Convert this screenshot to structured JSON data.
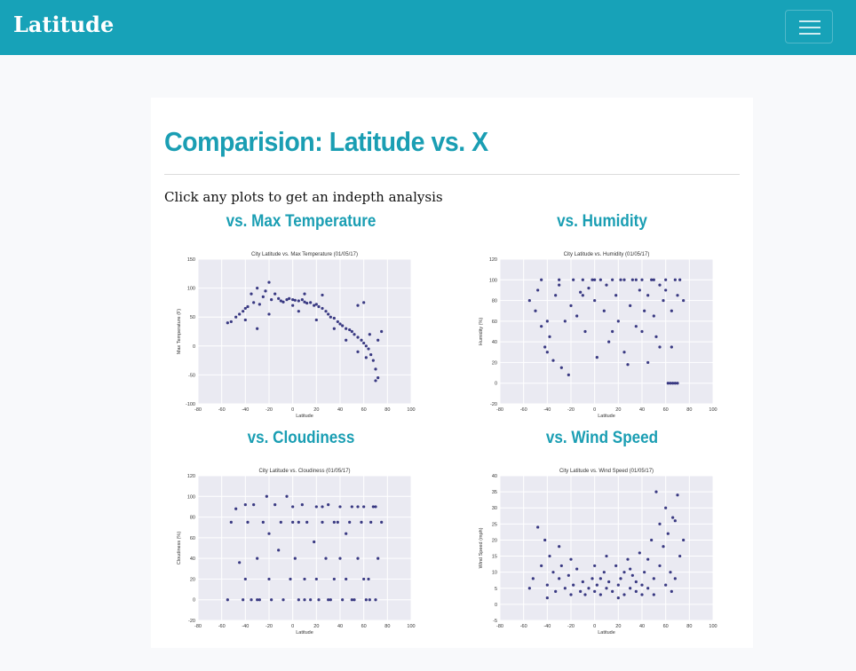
{
  "nav": {
    "brand": "Latitude"
  },
  "page": {
    "title": "Comparision: Latitude vs. X",
    "intro": "Click any plots to get an indepth analysis"
  },
  "colors": {
    "accent": "#17a2b8",
    "point": "#1a1a6e",
    "plot_bg": "#eaeaf2"
  },
  "icons": {
    "menu": "hamburger-menu-icon"
  },
  "plots": [
    {
      "heading": "vs. Max Temperature"
    },
    {
      "heading": "vs. Humidity"
    },
    {
      "heading": "vs. Cloudiness"
    },
    {
      "heading": "vs. Wind Speed"
    }
  ],
  "chart_data": [
    {
      "type": "scatter",
      "title": "City Latitude vs. Max Temperature (01/05/17)",
      "xlabel": "Latitude",
      "ylabel": "Max Temperature (F)",
      "xlim": [
        -80,
        100
      ],
      "ylim": [
        -100,
        150
      ],
      "xticks": [
        -80,
        -60,
        -40,
        -20,
        0,
        20,
        40,
        60,
        80,
        100
      ],
      "yticks": [
        -100,
        -50,
        0,
        50,
        100,
        150
      ],
      "grid": true,
      "points": [
        [
          -55,
          40
        ],
        [
          -52,
          42
        ],
        [
          -48,
          50
        ],
        [
          -45,
          55
        ],
        [
          -42,
          60
        ],
        [
          -40,
          65
        ],
        [
          -38,
          68
        ],
        [
          -35,
          90
        ],
        [
          -33,
          75
        ],
        [
          -30,
          100
        ],
        [
          -28,
          72
        ],
        [
          -25,
          85
        ],
        [
          -23,
          95
        ],
        [
          -20,
          110
        ],
        [
          -18,
          80
        ],
        [
          -15,
          90
        ],
        [
          -12,
          82
        ],
        [
          -10,
          78
        ],
        [
          -8,
          76
        ],
        [
          -5,
          80
        ],
        [
          -3,
          82
        ],
        [
          0,
          80
        ],
        [
          2,
          79
        ],
        [
          5,
          78
        ],
        [
          8,
          80
        ],
        [
          10,
          76
        ],
        [
          12,
          74
        ],
        [
          15,
          75
        ],
        [
          18,
          70
        ],
        [
          20,
          72
        ],
        [
          22,
          68
        ],
        [
          25,
          65
        ],
        [
          28,
          60
        ],
        [
          30,
          55
        ],
        [
          32,
          50
        ],
        [
          35,
          48
        ],
        [
          38,
          42
        ],
        [
          40,
          38
        ],
        [
          42,
          35
        ],
        [
          45,
          30
        ],
        [
          48,
          28
        ],
        [
          50,
          25
        ],
        [
          52,
          20
        ],
        [
          55,
          15
        ],
        [
          58,
          10
        ],
        [
          60,
          5
        ],
        [
          62,
          0
        ],
        [
          64,
          -5
        ],
        [
          66,
          -15
        ],
        [
          68,
          -25
        ],
        [
          70,
          -40
        ],
        [
          72,
          -55
        ],
        [
          60,
          75
        ],
        [
          55,
          70
        ],
        [
          65,
          20
        ],
        [
          72,
          10
        ],
        [
          75,
          25
        ],
        [
          -40,
          45
        ],
        [
          -20,
          55
        ],
        [
          5,
          60
        ],
        [
          20,
          45
        ],
        [
          35,
          30
        ],
        [
          45,
          10
        ],
        [
          55,
          -10
        ],
        [
          62,
          -20
        ],
        [
          70,
          -60
        ],
        [
          10,
          90
        ],
        [
          25,
          88
        ],
        [
          0,
          70
        ],
        [
          -30,
          30
        ]
      ]
    },
    {
      "type": "scatter",
      "title": "City Latitude vs. Humidity (01/05/17)",
      "xlabel": "Latitude",
      "ylabel": "Humidity (%)",
      "xlim": [
        -80,
        100
      ],
      "ylim": [
        -20,
        120
      ],
      "xticks": [
        -80,
        -60,
        -40,
        -20,
        0,
        20,
        40,
        60,
        80,
        100
      ],
      "yticks": [
        -20,
        0,
        20,
        40,
        60,
        80,
        100,
        120
      ],
      "grid": true,
      "points": [
        [
          -55,
          80
        ],
        [
          -50,
          70
        ],
        [
          -48,
          90
        ],
        [
          -45,
          55
        ],
        [
          -42,
          35
        ],
        [
          -40,
          30
        ],
        [
          -38,
          45
        ],
        [
          -35,
          22
        ],
        [
          -33,
          85
        ],
        [
          -30,
          95
        ],
        [
          -28,
          15
        ],
        [
          -25,
          60
        ],
        [
          -22,
          8
        ],
        [
          -20,
          75
        ],
        [
          -18,
          100
        ],
        [
          -15,
          65
        ],
        [
          -12,
          88
        ],
        [
          -10,
          100
        ],
        [
          -8,
          50
        ],
        [
          -5,
          92
        ],
        [
          -2,
          100
        ],
        [
          0,
          80
        ],
        [
          2,
          25
        ],
        [
          5,
          100
        ],
        [
          8,
          70
        ],
        [
          10,
          95
        ],
        [
          12,
          40
        ],
        [
          15,
          100
        ],
        [
          18,
          85
        ],
        [
          20,
          60
        ],
        [
          22,
          100
        ],
        [
          25,
          30
        ],
        [
          28,
          18
        ],
        [
          30,
          75
        ],
        [
          32,
          100
        ],
        [
          35,
          55
        ],
        [
          38,
          90
        ],
        [
          40,
          100
        ],
        [
          42,
          70
        ],
        [
          45,
          85
        ],
        [
          48,
          100
        ],
        [
          50,
          65
        ],
        [
          52,
          45
        ],
        [
          55,
          95
        ],
        [
          58,
          80
        ],
        [
          60,
          100
        ],
        [
          62,
          0
        ],
        [
          64,
          0
        ],
        [
          66,
          0
        ],
        [
          68,
          0
        ],
        [
          70,
          0
        ],
        [
          72,
          100
        ],
        [
          75,
          80
        ],
        [
          65,
          70
        ],
        [
          70,
          85
        ],
        [
          55,
          35
        ],
        [
          45,
          20
        ],
        [
          35,
          100
        ],
        [
          25,
          100
        ],
        [
          15,
          50
        ],
        [
          0,
          100
        ],
        [
          -10,
          85
        ],
        [
          -30,
          100
        ],
        [
          -40,
          60
        ],
        [
          -45,
          100
        ],
        [
          65,
          35
        ],
        [
          68,
          100
        ],
        [
          60,
          90
        ],
        [
          50,
          100
        ],
        [
          40,
          50
        ]
      ]
    },
    {
      "type": "scatter",
      "title": "City Latitude vs. Cloudiness (01/05/17)",
      "xlabel": "Latitude",
      "ylabel": "Cloudiness (%)",
      "xlim": [
        -80,
        100
      ],
      "ylim": [
        -20,
        120
      ],
      "xticks": [
        -80,
        -60,
        -40,
        -20,
        0,
        20,
        40,
        60,
        80,
        100
      ],
      "yticks": [
        -20,
        0,
        20,
        40,
        60,
        80,
        100,
        120
      ],
      "grid": true,
      "points": [
        [
          -55,
          0
        ],
        [
          -52,
          75
        ],
        [
          -48,
          88
        ],
        [
          -45,
          36
        ],
        [
          -42,
          0
        ],
        [
          -40,
          20
        ],
        [
          -38,
          75
        ],
        [
          -35,
          0
        ],
        [
          -33,
          92
        ],
        [
          -30,
          40
        ],
        [
          -28,
          0
        ],
        [
          -25,
          75
        ],
        [
          -22,
          100
        ],
        [
          -20,
          20
        ],
        [
          -18,
          0
        ],
        [
          -15,
          92
        ],
        [
          -12,
          48
        ],
        [
          -10,
          75
        ],
        [
          -8,
          0
        ],
        [
          -5,
          100
        ],
        [
          -2,
          20
        ],
        [
          0,
          75
        ],
        [
          2,
          40
        ],
        [
          5,
          0
        ],
        [
          8,
          92
        ],
        [
          10,
          20
        ],
        [
          12,
          75
        ],
        [
          15,
          0
        ],
        [
          18,
          56
        ],
        [
          20,
          90
        ],
        [
          22,
          0
        ],
        [
          25,
          75
        ],
        [
          28,
          40
        ],
        [
          30,
          92
        ],
        [
          32,
          0
        ],
        [
          35,
          20
        ],
        [
          38,
          75
        ],
        [
          40,
          90
        ],
        [
          42,
          0
        ],
        [
          45,
          64
        ],
        [
          48,
          75
        ],
        [
          50,
          90
        ],
        [
          52,
          0
        ],
        [
          55,
          40
        ],
        [
          58,
          75
        ],
        [
          60,
          90
        ],
        [
          62,
          0
        ],
        [
          64,
          20
        ],
        [
          66,
          75
        ],
        [
          68,
          90
        ],
        [
          70,
          0
        ],
        [
          72,
          40
        ],
        [
          75,
          75
        ],
        [
          -40,
          92
        ],
        [
          -20,
          64
        ],
        [
          0,
          90
        ],
        [
          20,
          20
        ],
        [
          40,
          40
        ],
        [
          60,
          20
        ],
        [
          70,
          90
        ],
        [
          10,
          0
        ],
        [
          30,
          0
        ],
        [
          50,
          0
        ],
        [
          65,
          0
        ],
        [
          -30,
          0
        ],
        [
          5,
          75
        ],
        [
          25,
          90
        ],
        [
          45,
          20
        ],
        [
          55,
          90
        ],
        [
          35,
          75
        ]
      ]
    },
    {
      "type": "scatter",
      "title": "City Latitude vs. Wind Speed (01/05/17)",
      "xlabel": "Latitude",
      "ylabel": "Wind Speed (mph)",
      "xlim": [
        -80,
        100
      ],
      "ylim": [
        -5,
        40
      ],
      "xticks": [
        -80,
        -60,
        -40,
        -20,
        0,
        20,
        40,
        60,
        80,
        100
      ],
      "yticks": [
        -5,
        0,
        5,
        10,
        15,
        20,
        25,
        30,
        35,
        40
      ],
      "grid": true,
      "points": [
        [
          -55,
          5
        ],
        [
          -52,
          8
        ],
        [
          -48,
          24
        ],
        [
          -45,
          12
        ],
        [
          -42,
          20
        ],
        [
          -40,
          6
        ],
        [
          -38,
          15
        ],
        [
          -35,
          10
        ],
        [
          -33,
          4
        ],
        [
          -30,
          8
        ],
        [
          -28,
          12
        ],
        [
          -25,
          5
        ],
        [
          -22,
          9
        ],
        [
          -20,
          3
        ],
        [
          -18,
          6
        ],
        [
          -15,
          11
        ],
        [
          -12,
          4
        ],
        [
          -10,
          7
        ],
        [
          -8,
          3
        ],
        [
          -5,
          5
        ],
        [
          -2,
          8
        ],
        [
          0,
          4
        ],
        [
          2,
          6
        ],
        [
          5,
          3
        ],
        [
          8,
          10
        ],
        [
          10,
          5
        ],
        [
          12,
          7
        ],
        [
          15,
          4
        ],
        [
          18,
          12
        ],
        [
          20,
          6
        ],
        [
          22,
          8
        ],
        [
          25,
          3
        ],
        [
          28,
          14
        ],
        [
          30,
          5
        ],
        [
          32,
          9
        ],
        [
          35,
          4
        ],
        [
          38,
          16
        ],
        [
          40,
          6
        ],
        [
          42,
          10
        ],
        [
          45,
          5
        ],
        [
          48,
          20
        ],
        [
          50,
          8
        ],
        [
          52,
          35
        ],
        [
          55,
          12
        ],
        [
          58,
          18
        ],
        [
          60,
          6
        ],
        [
          62,
          22
        ],
        [
          64,
          10
        ],
        [
          66,
          27
        ],
        [
          68,
          8
        ],
        [
          70,
          34
        ],
        [
          72,
          15
        ],
        [
          75,
          20
        ],
        [
          -40,
          2
        ],
        [
          -20,
          14
        ],
        [
          0,
          12
        ],
        [
          20,
          2
        ],
        [
          40,
          3
        ],
        [
          60,
          30
        ],
        [
          65,
          4
        ],
        [
          10,
          15
        ],
        [
          30,
          11
        ],
        [
          50,
          3
        ],
        [
          55,
          25
        ],
        [
          -30,
          18
        ],
        [
          5,
          8
        ],
        [
          25,
          10
        ],
        [
          45,
          14
        ],
        [
          68,
          26
        ],
        [
          35,
          7
        ]
      ]
    }
  ]
}
